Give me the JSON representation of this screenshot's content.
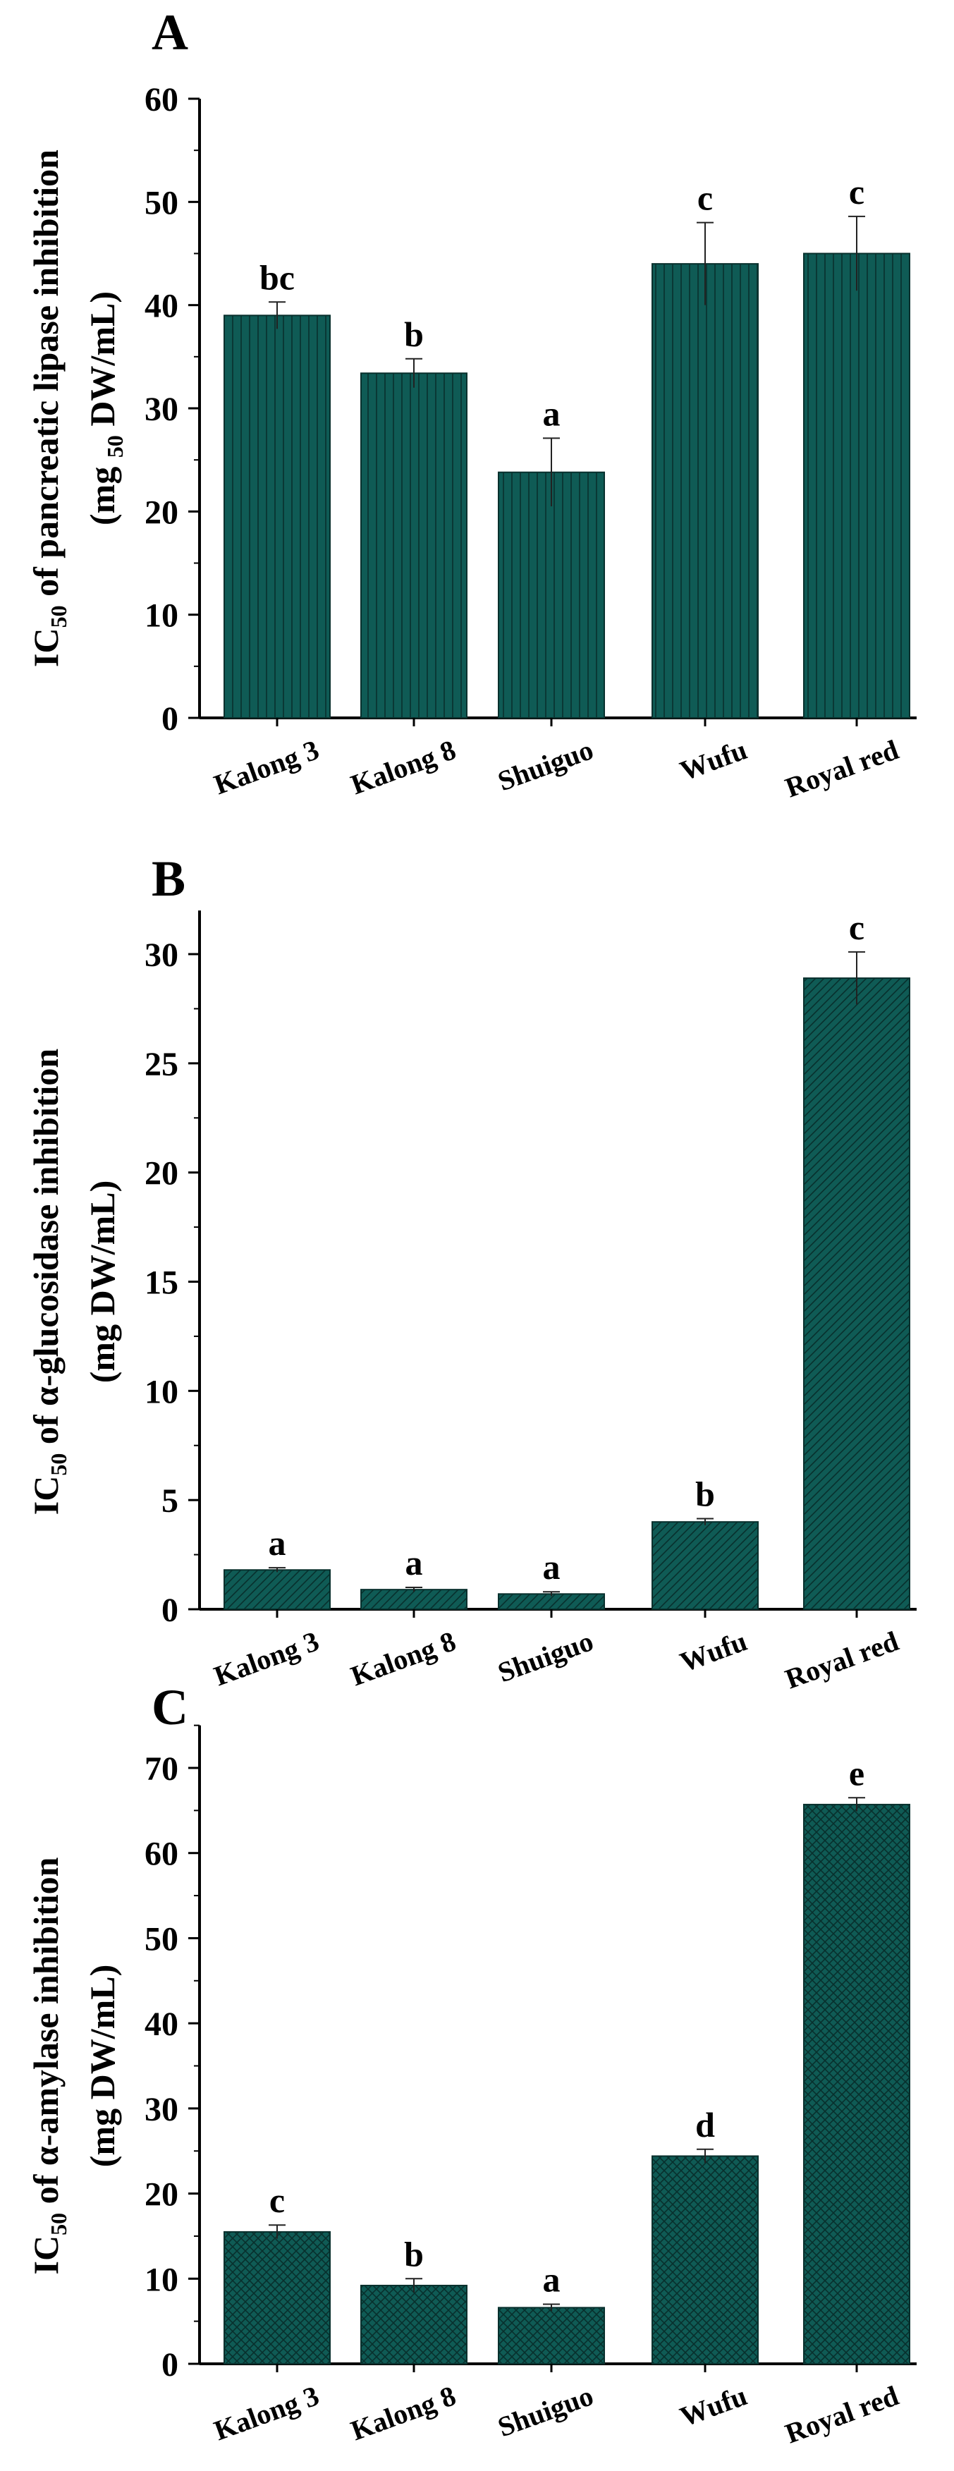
{
  "colors": {
    "bar_fill": "#0f5b55",
    "bar_stroke": "#08302d",
    "axis": "#000000"
  },
  "chart_data": [
    {
      "panel_label": "A",
      "type": "bar",
      "pattern": "vertical-lines",
      "categories": [
        "Kalong 3",
        "Kalong 8",
        "Shuiguo",
        "Wufu",
        "Royal red"
      ],
      "values": [
        39.0,
        33.4,
        23.8,
        44.0,
        45.0
      ],
      "errors": [
        1.3,
        1.4,
        3.3,
        4.0,
        3.6
      ],
      "significance": [
        "bc",
        "b",
        "a",
        "c",
        "c"
      ],
      "ylabel_main": "IC",
      "ylabel_sub": "50",
      "ylabel_rest": " of  pancreatic lipase inhibition",
      "ylabel_line2_pre": "(mg ",
      "ylabel_line2_sub": "50",
      "ylabel_line2_post": " DW/mL)",
      "ylim": [
        0,
        60
      ],
      "yticks": [
        0,
        10,
        20,
        30,
        40,
        50,
        60
      ],
      "minor_step": 5,
      "grid": false
    },
    {
      "panel_label": "B",
      "type": "bar",
      "pattern": "diagonal-lines",
      "categories": [
        "Kalong 3",
        "Kalong 8",
        "Shuiguo",
        "Wufu",
        "Royal red"
      ],
      "values": [
        1.8,
        0.9,
        0.7,
        4.0,
        28.9
      ],
      "errors": [
        0.1,
        0.1,
        0.1,
        0.15,
        1.2
      ],
      "significance": [
        "a",
        "a",
        "a",
        "b",
        "c"
      ],
      "ylabel_main": "IC",
      "ylabel_sub": "50",
      "ylabel_rest": " of  α-glucosidase inhibition",
      "ylabel_line2_pre": "(mg DW/mL)",
      "ylabel_line2_sub": "",
      "ylabel_line2_post": "",
      "ylim": [
        0,
        32
      ],
      "yticks": [
        0,
        5,
        10,
        15,
        20,
        25,
        30
      ],
      "minor_step": 2.5,
      "grid": false
    },
    {
      "panel_label": "C",
      "type": "bar",
      "pattern": "crosshatch",
      "categories": [
        "Kalong 3",
        "Kalong 8",
        "Shuiguo",
        "Wufu",
        "Royal red"
      ],
      "values": [
        15.5,
        9.2,
        6.6,
        24.4,
        65.7
      ],
      "errors": [
        0.8,
        0.8,
        0.4,
        0.8,
        0.8
      ],
      "significance": [
        "c",
        "b",
        "a",
        "d",
        "e"
      ],
      "ylabel_main": "IC",
      "ylabel_sub": "50",
      "ylabel_rest": " of α-amylase inhibition",
      "ylabel_line2_pre": "(mg DW/mL)",
      "ylabel_line2_sub": "",
      "ylabel_line2_post": "",
      "ylim": [
        0,
        75
      ],
      "yticks": [
        0,
        10,
        20,
        30,
        40,
        50,
        60,
        70
      ],
      "minor_step": 5,
      "grid": false
    }
  ]
}
